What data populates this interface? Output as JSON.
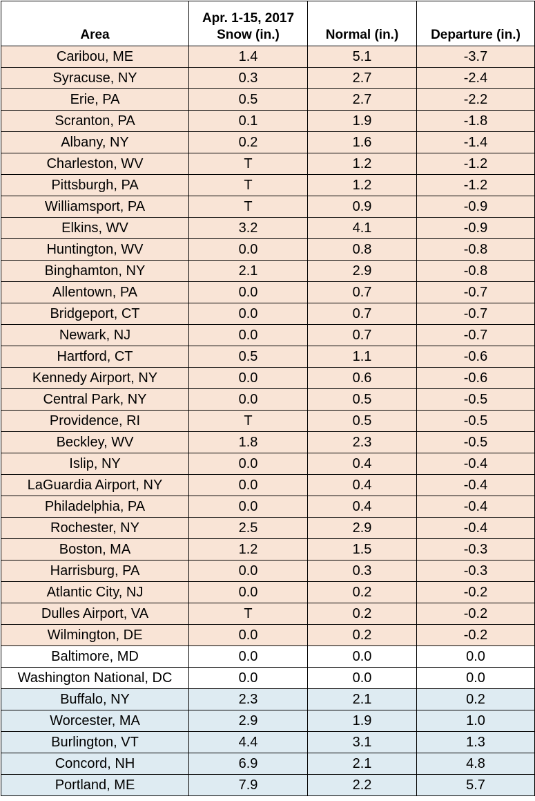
{
  "table": {
    "header": {
      "area": "Area",
      "snow_line1": "Apr. 1-15, 2017",
      "snow_line2": "Snow (in.)",
      "normal": "Normal (in.)",
      "departure": "Departure (in.)"
    },
    "row_colors": {
      "below_normal": "#f9e4d6",
      "normal": "#ffffff",
      "above_normal": "#deebf2"
    },
    "rows": [
      {
        "area": "Caribou, ME",
        "snow": "1.4",
        "normal": "5.1",
        "departure": "-3.7",
        "category": "below"
      },
      {
        "area": "Syracuse, NY",
        "snow": "0.3",
        "normal": "2.7",
        "departure": "-2.4",
        "category": "below"
      },
      {
        "area": "Erie, PA",
        "snow": "0.5",
        "normal": "2.7",
        "departure": "-2.2",
        "category": "below"
      },
      {
        "area": "Scranton, PA",
        "snow": "0.1",
        "normal": "1.9",
        "departure": "-1.8",
        "category": "below"
      },
      {
        "area": "Albany, NY",
        "snow": "0.2",
        "normal": "1.6",
        "departure": "-1.4",
        "category": "below"
      },
      {
        "area": "Charleston, WV",
        "snow": "T",
        "normal": "1.2",
        "departure": "-1.2",
        "category": "below"
      },
      {
        "area": "Pittsburgh, PA",
        "snow": "T",
        "normal": "1.2",
        "departure": "-1.2",
        "category": "below"
      },
      {
        "area": "Williamsport, PA",
        "snow": "T",
        "normal": "0.9",
        "departure": "-0.9",
        "category": "below"
      },
      {
        "area": "Elkins, WV",
        "snow": "3.2",
        "normal": "4.1",
        "departure": "-0.9",
        "category": "below"
      },
      {
        "area": "Huntington, WV",
        "snow": "0.0",
        "normal": "0.8",
        "departure": "-0.8",
        "category": "below"
      },
      {
        "area": "Binghamton, NY",
        "snow": "2.1",
        "normal": "2.9",
        "departure": "-0.8",
        "category": "below"
      },
      {
        "area": "Allentown, PA",
        "snow": "0.0",
        "normal": "0.7",
        "departure": "-0.7",
        "category": "below"
      },
      {
        "area": "Bridgeport, CT",
        "snow": "0.0",
        "normal": "0.7",
        "departure": "-0.7",
        "category": "below"
      },
      {
        "area": "Newark, NJ",
        "snow": "0.0",
        "normal": "0.7",
        "departure": "-0.7",
        "category": "below"
      },
      {
        "area": "Hartford, CT",
        "snow": "0.5",
        "normal": "1.1",
        "departure": "-0.6",
        "category": "below"
      },
      {
        "area": "Kennedy Airport, NY",
        "snow": "0.0",
        "normal": "0.6",
        "departure": "-0.6",
        "category": "below"
      },
      {
        "area": "Central Park, NY",
        "snow": "0.0",
        "normal": "0.5",
        "departure": "-0.5",
        "category": "below"
      },
      {
        "area": "Providence, RI",
        "snow": "T",
        "normal": "0.5",
        "departure": "-0.5",
        "category": "below"
      },
      {
        "area": "Beckley, WV",
        "snow": "1.8",
        "normal": "2.3",
        "departure": "-0.5",
        "category": "below"
      },
      {
        "area": "Islip, NY",
        "snow": "0.0",
        "normal": "0.4",
        "departure": "-0.4",
        "category": "below"
      },
      {
        "area": "LaGuardia Airport, NY",
        "snow": "0.0",
        "normal": "0.4",
        "departure": "-0.4",
        "category": "below"
      },
      {
        "area": "Philadelphia, PA",
        "snow": "0.0",
        "normal": "0.4",
        "departure": "-0.4",
        "category": "below"
      },
      {
        "area": "Rochester, NY",
        "snow": "2.5",
        "normal": "2.9",
        "departure": "-0.4",
        "category": "below"
      },
      {
        "area": "Boston, MA",
        "snow": "1.2",
        "normal": "1.5",
        "departure": "-0.3",
        "category": "below"
      },
      {
        "area": "Harrisburg, PA",
        "snow": "0.0",
        "normal": "0.3",
        "departure": "-0.3",
        "category": "below"
      },
      {
        "area": "Atlantic City, NJ",
        "snow": "0.0",
        "normal": "0.2",
        "departure": "-0.2",
        "category": "below"
      },
      {
        "area": "Dulles Airport, VA",
        "snow": "T",
        "normal": "0.2",
        "departure": "-0.2",
        "category": "below"
      },
      {
        "area": "Wilmington, DE",
        "snow": "0.0",
        "normal": "0.2",
        "departure": "-0.2",
        "category": "below"
      },
      {
        "area": "Baltimore, MD",
        "snow": "0.0",
        "normal": "0.0",
        "departure": "0.0",
        "category": "normal"
      },
      {
        "area": "Washington National, DC",
        "snow": "0.0",
        "normal": "0.0",
        "departure": "0.0",
        "category": "normal"
      },
      {
        "area": "Buffalo, NY",
        "snow": "2.3",
        "normal": "2.1",
        "departure": "0.2",
        "category": "above"
      },
      {
        "area": "Worcester, MA",
        "snow": "2.9",
        "normal": "1.9",
        "departure": "1.0",
        "category": "above"
      },
      {
        "area": "Burlington, VT",
        "snow": "4.4",
        "normal": "3.1",
        "departure": "1.3",
        "category": "above"
      },
      {
        "area": "Concord, NH",
        "snow": "6.9",
        "normal": "2.1",
        "departure": "4.8",
        "category": "above"
      },
      {
        "area": "Portland, ME",
        "snow": "7.9",
        "normal": "2.2",
        "departure": "5.7",
        "category": "above"
      }
    ]
  }
}
